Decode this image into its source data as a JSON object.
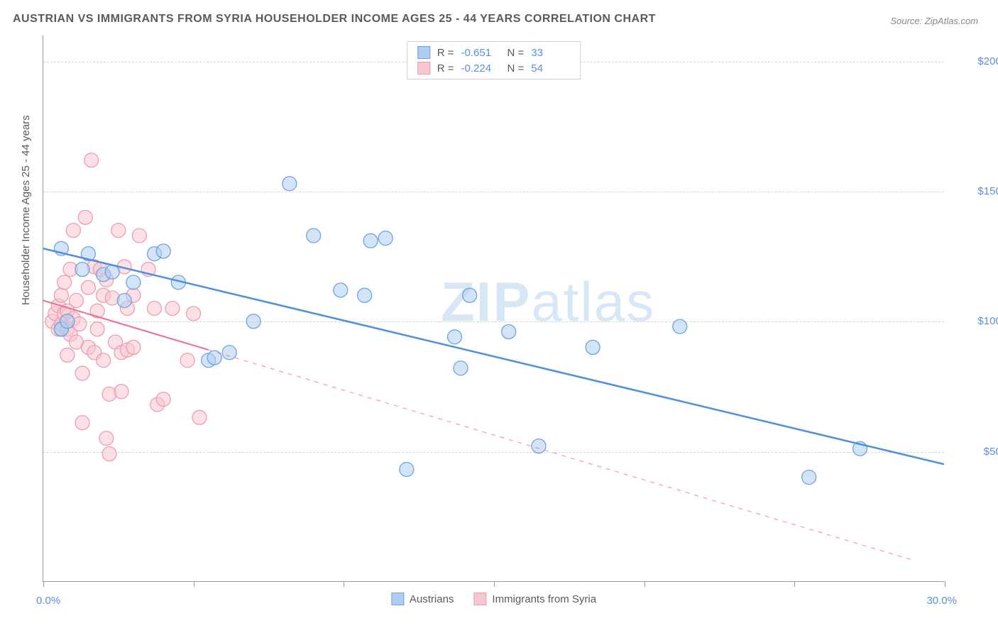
{
  "title": "AUSTRIAN VS IMMIGRANTS FROM SYRIA HOUSEHOLDER INCOME AGES 25 - 44 YEARS CORRELATION CHART",
  "source_label": "Source: ZipAtlas.com",
  "watermark_text_bold": "ZIP",
  "watermark_text_rest": "atlas",
  "y_axis_title": "Householder Income Ages 25 - 44 years",
  "chart": {
    "type": "scatter",
    "xlim": [
      0,
      30
    ],
    "ylim": [
      0,
      210000
    ],
    "x_ticks": [
      0,
      5,
      10,
      15,
      20,
      25,
      30
    ],
    "x_tick_labels_shown": {
      "0": "0.0%",
      "30": "30.0%"
    },
    "y_gridlines": [
      50000,
      100000,
      150000,
      200000
    ],
    "y_tick_labels": [
      "$50,000",
      "$100,000",
      "$150,000",
      "$200,000"
    ],
    "background_color": "#ffffff",
    "grid_color": "#d4d4d4",
    "axis_color": "#9a9a9a",
    "tick_label_color": "#5b8fd6",
    "marker_radius": 10,
    "marker_opacity": 0.55,
    "series": [
      {
        "name": "Austrians",
        "color_fill": "#aecdf0",
        "color_stroke": "#6fa3e0",
        "r_value": "-0.651",
        "n_value": "33",
        "trend": {
          "x1": 0,
          "y1": 128000,
          "x2": 30,
          "y2": 45000,
          "dash": false,
          "stroke": "#4f8fe0",
          "width": 2.5,
          "solid_until_x": 30
        },
        "points": [
          [
            0.6,
            128000
          ],
          [
            0.6,
            97000
          ],
          [
            0.6,
            97000
          ],
          [
            0.8,
            100000
          ],
          [
            1.3,
            120000
          ],
          [
            1.5,
            126000
          ],
          [
            2.0,
            118000
          ],
          [
            2.3,
            119000
          ],
          [
            2.7,
            108000
          ],
          [
            3.0,
            115000
          ],
          [
            3.7,
            126000
          ],
          [
            4.0,
            127000
          ],
          [
            4.5,
            115000
          ],
          [
            5.5,
            85000
          ],
          [
            5.7,
            86000
          ],
          [
            6.2,
            88000
          ],
          [
            7.0,
            100000
          ],
          [
            8.2,
            153000
          ],
          [
            9.0,
            133000
          ],
          [
            9.9,
            112000
          ],
          [
            10.7,
            110000
          ],
          [
            10.9,
            131000
          ],
          [
            11.4,
            132000
          ],
          [
            12.1,
            43000
          ],
          [
            13.7,
            94000
          ],
          [
            13.9,
            82000
          ],
          [
            15.5,
            96000
          ],
          [
            16.5,
            52000
          ],
          [
            18.3,
            90000
          ],
          [
            21.2,
            98000
          ],
          [
            25.5,
            40000
          ],
          [
            27.2,
            51000
          ],
          [
            14.2,
            110000
          ]
        ]
      },
      {
        "name": "Immigants from Syria",
        "legend_label": "Immigrants from Syria",
        "color_fill": "#f7c6d0",
        "color_stroke": "#ef9cb2",
        "r_value": "-0.224",
        "n_value": "54",
        "trend": {
          "x1": 0,
          "y1": 108000,
          "x2": 29,
          "y2": 8000,
          "dash_from_x": 5.5,
          "stroke": "#ec6d8b",
          "width": 2,
          "solid_until_x": 5.5
        },
        "points": [
          [
            0.3,
            100000
          ],
          [
            0.4,
            103000
          ],
          [
            0.5,
            97000
          ],
          [
            0.5,
            106000
          ],
          [
            0.6,
            110000
          ],
          [
            0.6,
            99000
          ],
          [
            0.7,
            115000
          ],
          [
            0.7,
            103000
          ],
          [
            0.8,
            104000
          ],
          [
            0.8,
            97000
          ],
          [
            0.9,
            120000
          ],
          [
            0.9,
            95000
          ],
          [
            1.0,
            135000
          ],
          [
            1.0,
            101000
          ],
          [
            1.1,
            108000
          ],
          [
            1.1,
            92000
          ],
          [
            1.2,
            99000
          ],
          [
            1.3,
            61000
          ],
          [
            1.4,
            140000
          ],
          [
            1.5,
            113000
          ],
          [
            1.5,
            90000
          ],
          [
            1.6,
            162000
          ],
          [
            1.7,
            121000
          ],
          [
            1.7,
            88000
          ],
          [
            1.8,
            97000
          ],
          [
            1.8,
            104000
          ],
          [
            1.9,
            120000
          ],
          [
            2.0,
            110000
          ],
          [
            2.0,
            85000
          ],
          [
            2.1,
            116000
          ],
          [
            2.2,
            72000
          ],
          [
            2.2,
            49000
          ],
          [
            2.3,
            109000
          ],
          [
            2.4,
            92000
          ],
          [
            2.5,
            135000
          ],
          [
            2.6,
            73000
          ],
          [
            2.6,
            88000
          ],
          [
            2.7,
            121000
          ],
          [
            2.8,
            105000
          ],
          [
            2.8,
            89000
          ],
          [
            3.0,
            90000
          ],
          [
            3.0,
            110000
          ],
          [
            3.2,
            133000
          ],
          [
            3.5,
            120000
          ],
          [
            3.7,
            105000
          ],
          [
            3.8,
            68000
          ],
          [
            4.0,
            70000
          ],
          [
            4.3,
            105000
          ],
          [
            4.8,
            85000
          ],
          [
            5.0,
            103000
          ],
          [
            5.2,
            63000
          ],
          [
            1.3,
            80000
          ],
          [
            0.8,
            87000
          ],
          [
            2.1,
            55000
          ]
        ]
      }
    ]
  },
  "legend_top": {
    "r_label": "R =",
    "n_label": "N ="
  },
  "legend_bottom": {
    "items": [
      "Austrians",
      "Immigrants from Syria"
    ]
  }
}
